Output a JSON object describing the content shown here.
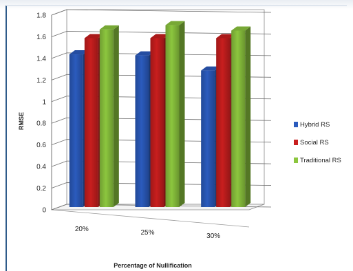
{
  "chart_data": {
    "type": "bar",
    "categories": [
      "20%",
      "25%",
      "30%"
    ],
    "series": [
      {
        "name": "Hybrid RS",
        "values": [
          1.45,
          1.44,
          1.3
        ],
        "color": "#2b5bbd"
      },
      {
        "name": "Social RS",
        "values": [
          1.6,
          1.6,
          1.6
        ],
        "color": "#c81e1e"
      },
      {
        "name": "Traditional RS",
        "values": [
          1.68,
          1.72,
          1.67
        ],
        "color": "#8cc63e"
      }
    ],
    "title": "",
    "xlabel": "Percentage of Nullification",
    "ylabel": "RMSE",
    "ylim": [
      0,
      1.8
    ],
    "yticks": [
      "0",
      "0.2",
      "0.4",
      "0.6",
      "0.8",
      "1",
      "1.2",
      "1.4",
      "1.6",
      "1.8"
    ],
    "grid": true,
    "legend_position": "right"
  }
}
